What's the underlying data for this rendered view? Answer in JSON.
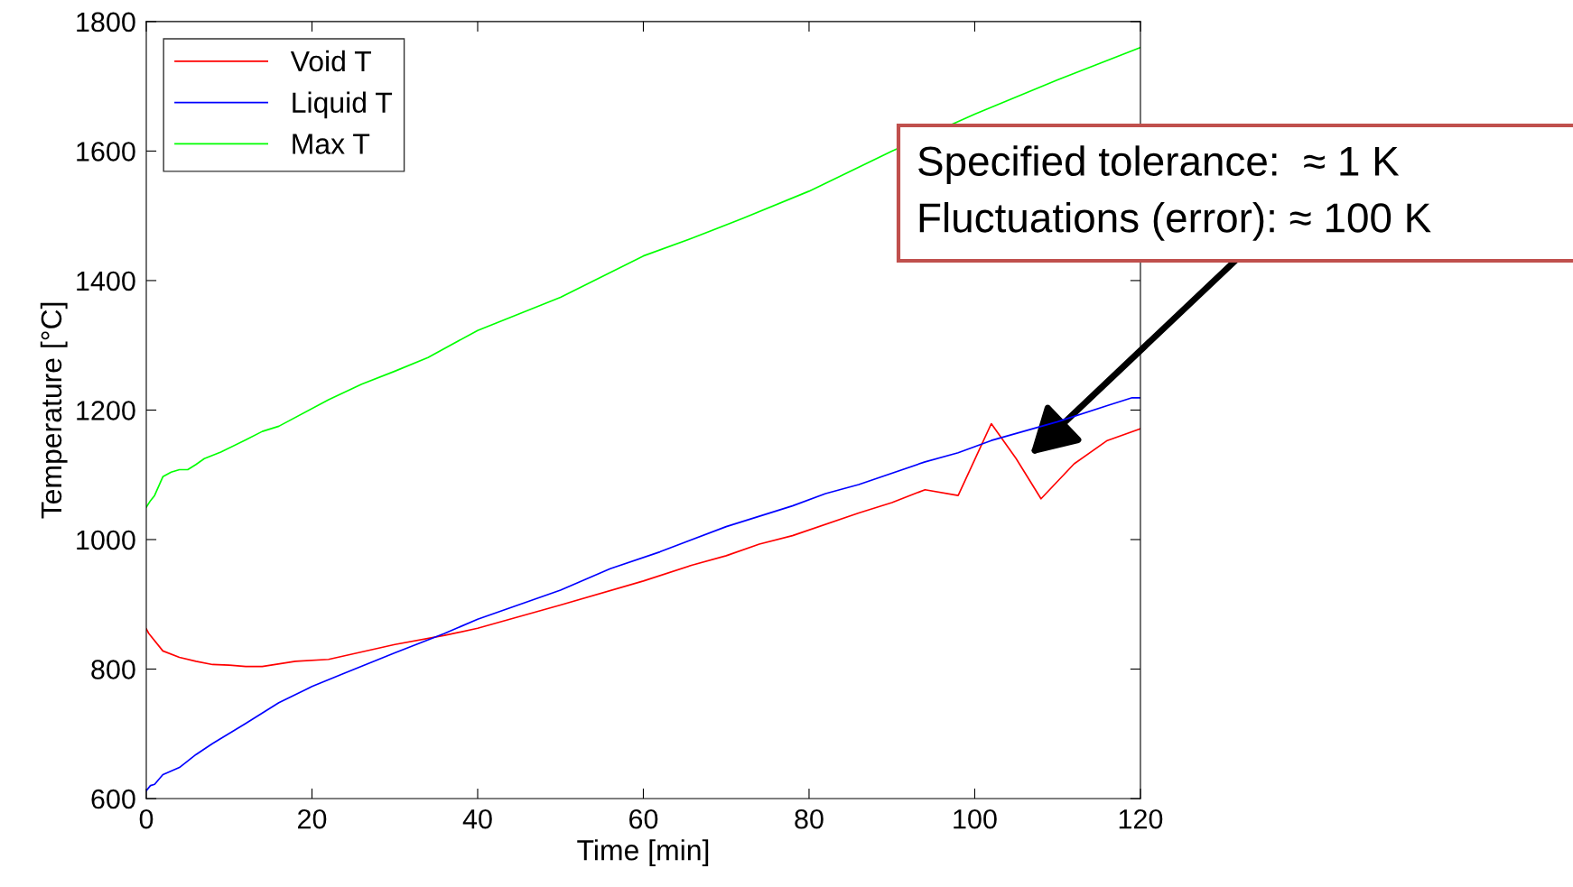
{
  "chart_data": {
    "type": "line",
    "xlabel": "Time [min]",
    "ylabel": "Temperature [°C]",
    "xlim": [
      0,
      120
    ],
    "ylim": [
      600,
      1800
    ],
    "xticks": [
      0,
      20,
      40,
      60,
      80,
      100,
      120
    ],
    "yticks": [
      600,
      800,
      1000,
      1200,
      1400,
      1600,
      1800
    ],
    "grid": false,
    "legend": "top left",
    "line_style": "solid",
    "marker": "none",
    "series": [
      {
        "name": "Void T",
        "color": "#ff0000",
        "x": [
          0,
          0.3,
          2,
          4,
          6,
          8,
          10,
          12,
          14,
          18,
          22,
          30,
          36,
          40,
          50,
          60,
          66,
          70,
          74,
          78,
          86,
          90,
          94,
          98,
          102,
          105,
          108,
          112,
          116,
          120
        ],
        "values": [
          862,
          855,
          828,
          818,
          812,
          807,
          806,
          804,
          804,
          812,
          815,
          838,
          852,
          863,
          899,
          936,
          961,
          975,
          993,
          1006,
          1041,
          1057,
          1077,
          1068,
          1179,
          1125,
          1063,
          1117,
          1153,
          1171
        ]
      },
      {
        "name": "Liquid T",
        "color": "#0000ff",
        "x": [
          0,
          0.5,
          1,
          2,
          4,
          6,
          8,
          12,
          16,
          20,
          24,
          30,
          36,
          40,
          50,
          56,
          62,
          70,
          78,
          82,
          86,
          94,
          98,
          102,
          110,
          116,
          119,
          120
        ],
        "values": [
          612,
          620,
          622,
          637,
          648,
          668,
          685,
          716,
          748,
          773,
          794,
          825,
          855,
          877,
          922,
          955,
          981,
          1020,
          1052,
          1071,
          1085,
          1120,
          1134,
          1153,
          1182,
          1207,
          1219,
          1219
        ]
      },
      {
        "name": "Max T",
        "color": "#00ff00",
        "x": [
          0,
          0.5,
          1,
          2,
          3,
          4,
          5,
          6,
          7,
          9,
          12,
          14,
          16,
          22,
          26,
          30,
          34,
          40,
          50,
          60,
          66,
          72,
          80,
          90,
          100,
          110,
          120
        ],
        "values": [
          1050,
          1060,
          1068,
          1097,
          1104,
          1108,
          1108,
          1116,
          1125,
          1135,
          1154,
          1167,
          1175,
          1216,
          1240,
          1260,
          1281,
          1323,
          1374,
          1438,
          1466,
          1496,
          1538,
          1600,
          1657,
          1710,
          1760
        ]
      }
    ],
    "annotations": [
      "Specified tolerance:  ≈ 1 K\nFluctuations (error): ≈ 100 K"
    ]
  }
}
